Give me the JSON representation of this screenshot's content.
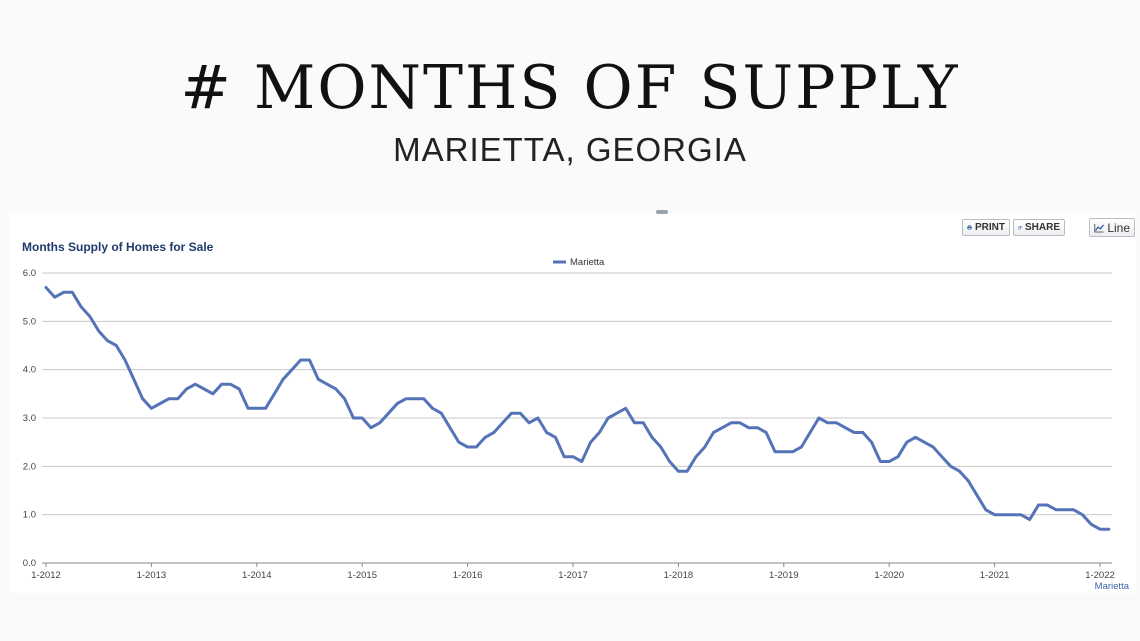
{
  "header": {
    "title": "# MONTHS OF SUPPLY",
    "subtitle": "MARIETTA, GEORGIA"
  },
  "toolbar": {
    "print_label": "PRINT",
    "share_label": "SHARE",
    "line_label": "Line"
  },
  "colors": {
    "series": "#5574b8",
    "title": "#1f3b6b",
    "grid": "#c8c8c8"
  },
  "chart_data": {
    "type": "line",
    "title": "Months Supply of Homes for Sale",
    "xlabel": "",
    "ylabel": "",
    "ylim": [
      0,
      6
    ],
    "y_ticks": [
      0,
      1,
      2,
      3,
      4,
      5,
      6
    ],
    "y_tick_labels": [
      "0.0",
      "1.0",
      "2.0",
      "3.0",
      "4.0",
      "5.0",
      "6.0"
    ],
    "x_ticks": [
      "1-2012",
      "1-2013",
      "1-2014",
      "1-2015",
      "1-2016",
      "1-2017",
      "1-2018",
      "1-2019",
      "1-2020",
      "1-2021",
      "1-2022"
    ],
    "x_start": "1-2012",
    "x_step": "month",
    "legend": {
      "position": "top-center",
      "entries": [
        "Marietta"
      ]
    },
    "grid": true,
    "series": [
      {
        "name": "Marietta",
        "values": [
          5.7,
          5.5,
          5.6,
          5.6,
          5.3,
          5.1,
          4.8,
          4.6,
          4.5,
          4.2,
          3.8,
          3.4,
          3.2,
          3.3,
          3.4,
          3.4,
          3.6,
          3.7,
          3.6,
          3.5,
          3.7,
          3.7,
          3.6,
          3.2,
          3.2,
          3.2,
          3.5,
          3.8,
          4.0,
          4.2,
          4.2,
          3.8,
          3.7,
          3.6,
          3.4,
          3.0,
          3.0,
          2.8,
          2.9,
          3.1,
          3.3,
          3.4,
          3.4,
          3.4,
          3.2,
          3.1,
          2.8,
          2.5,
          2.4,
          2.4,
          2.6,
          2.7,
          2.9,
          3.1,
          3.1,
          2.9,
          3.0,
          2.7,
          2.6,
          2.2,
          2.2,
          2.1,
          2.5,
          2.7,
          3.0,
          3.1,
          3.2,
          2.9,
          2.9,
          2.6,
          2.4,
          2.1,
          1.9,
          1.9,
          2.2,
          2.4,
          2.7,
          2.8,
          2.9,
          2.9,
          2.8,
          2.8,
          2.7,
          2.3,
          2.3,
          2.3,
          2.4,
          2.7,
          3.0,
          2.9,
          2.9,
          2.8,
          2.7,
          2.7,
          2.5,
          2.1,
          2.1,
          2.2,
          2.5,
          2.6,
          2.5,
          2.4,
          2.2,
          2.0,
          1.9,
          1.7,
          1.4,
          1.1,
          1.0,
          1.0,
          1.0,
          1.0,
          0.9,
          1.2,
          1.2,
          1.1,
          1.1,
          1.1,
          1.0,
          0.8,
          0.7,
          0.7
        ]
      }
    ]
  }
}
